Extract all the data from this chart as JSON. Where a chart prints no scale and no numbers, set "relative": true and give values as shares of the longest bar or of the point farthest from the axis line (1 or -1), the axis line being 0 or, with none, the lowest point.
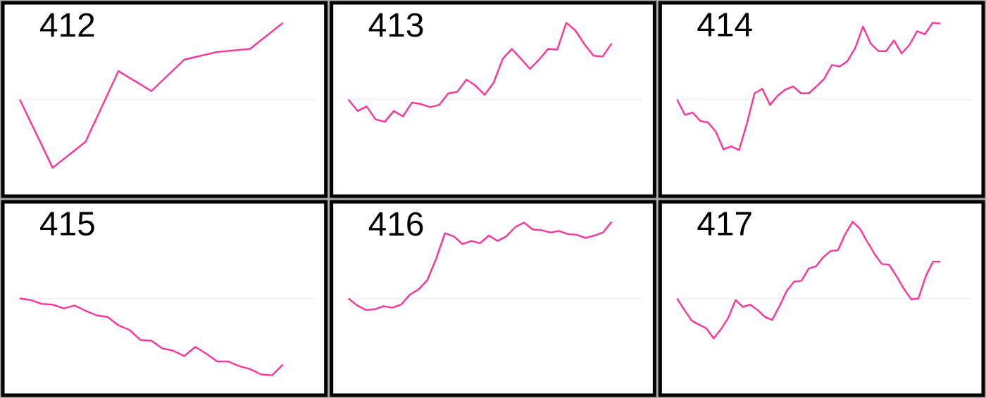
{
  "chart_data": [
    {
      "type": "line",
      "title": "412",
      "relative": true,
      "color": "#ff3399",
      "categories": [
        null,
        null,
        null,
        null,
        null,
        null,
        null,
        null,
        null
      ],
      "values": [
        0,
        -0.89,
        -0.55,
        0.37,
        0.11,
        0.52,
        0.62,
        0.66,
        1
      ]
    },
    {
      "type": "line",
      "title": "413",
      "relative": true,
      "color": "#ff3399",
      "categories": [
        null,
        null,
        null,
        null,
        null,
        null,
        null,
        null,
        null,
        null,
        null,
        null,
        null,
        null,
        null,
        null,
        null,
        null,
        null,
        null,
        null,
        null,
        null,
        null,
        null,
        null,
        null,
        null,
        null,
        null
      ],
      "values": [
        0,
        -0.15,
        -0.09,
        -0.26,
        -0.29,
        -0.15,
        -0.22,
        -0.04,
        -0.06,
        -0.1,
        -0.07,
        0.08,
        0.1,
        0.26,
        0.18,
        0.06,
        0.22,
        0.53,
        0.66,
        0.53,
        0.4,
        0.52,
        0.66,
        0.65,
        1,
        0.9,
        0.72,
        0.57,
        0.56,
        0.73
      ]
    },
    {
      "type": "line",
      "title": "414",
      "relative": true,
      "color": "#ff3399",
      "categories": [
        null,
        null,
        null,
        null,
        null,
        null,
        null,
        null,
        null,
        null,
        null,
        null,
        null,
        null,
        null,
        null,
        null,
        null,
        null,
        null,
        null,
        null,
        null,
        null,
        null,
        null,
        null,
        null,
        null,
        null,
        null,
        null,
        null,
        null,
        null
      ],
      "values": [
        0,
        -0.2,
        -0.17,
        -0.28,
        -0.3,
        -0.42,
        -0.65,
        -0.61,
        -0.66,
        -0.32,
        0.08,
        0.14,
        -0.07,
        0.05,
        0.13,
        0.17,
        0.08,
        0.08,
        0.17,
        0.27,
        0.45,
        0.43,
        0.5,
        0.67,
        0.95,
        0.73,
        0.63,
        0.63,
        0.77,
        0.6,
        0.71,
        0.89,
        0.85,
        1,
        0.99
      ]
    },
    {
      "type": "line",
      "title": "415",
      "relative": true,
      "color": "#ff3399",
      "categories": [
        null,
        null,
        null,
        null,
        null,
        null,
        null,
        null,
        null,
        null,
        null,
        null,
        null,
        null,
        null,
        null,
        null,
        null,
        null,
        null,
        null,
        null,
        null,
        null,
        null
      ],
      "values": [
        0,
        -0.02,
        -0.07,
        -0.08,
        -0.13,
        -0.09,
        -0.16,
        -0.22,
        -0.24,
        -0.35,
        -0.41,
        -0.54,
        -0.55,
        -0.65,
        -0.68,
        -0.75,
        -0.63,
        -0.72,
        -0.82,
        -0.82,
        -0.88,
        -0.92,
        -0.99,
        -1,
        -0.86
      ]
    },
    {
      "type": "line",
      "title": "416",
      "relative": true,
      "color": "#ff3399",
      "categories": [
        null,
        null,
        null,
        null,
        null,
        null,
        null,
        null,
        null,
        null,
        null,
        null,
        null,
        null,
        null,
        null,
        null,
        null,
        null,
        null,
        null,
        null,
        null,
        null,
        null,
        null,
        null,
        null,
        null,
        null,
        null
      ],
      "values": [
        0,
        -0.09,
        -0.15,
        -0.14,
        -0.1,
        -0.12,
        -0.08,
        0.05,
        0.12,
        0.24,
        0.52,
        0.85,
        0.81,
        0.71,
        0.75,
        0.72,
        0.82,
        0.75,
        0.81,
        0.93,
        0.99,
        0.9,
        0.89,
        0.86,
        0.88,
        0.84,
        0.83,
        0.79,
        0.82,
        0.86,
        1
      ]
    },
    {
      "type": "line",
      "title": "417",
      "relative": true,
      "color": "#ff3399",
      "categories": [
        null,
        null,
        null,
        null,
        null,
        null,
        null,
        null,
        null,
        null,
        null,
        null,
        null,
        null,
        null,
        null,
        null,
        null,
        null,
        null,
        null,
        null,
        null,
        null,
        null,
        null,
        null,
        null,
        null,
        null,
        null,
        null,
        null,
        null,
        null,
        null,
        null
      ],
      "values": [
        0,
        -0.15,
        -0.29,
        -0.34,
        -0.39,
        -0.52,
        -0.4,
        -0.25,
        -0.02,
        -0.11,
        -0.08,
        -0.15,
        -0.24,
        -0.28,
        -0.1,
        0.1,
        0.22,
        0.23,
        0.39,
        0.42,
        0.54,
        0.62,
        0.63,
        0.84,
        1,
        0.91,
        0.74,
        0.58,
        0.45,
        0.44,
        0.29,
        0.13,
        -0.01,
        0,
        0.29,
        0.48,
        0.48
      ]
    }
  ]
}
